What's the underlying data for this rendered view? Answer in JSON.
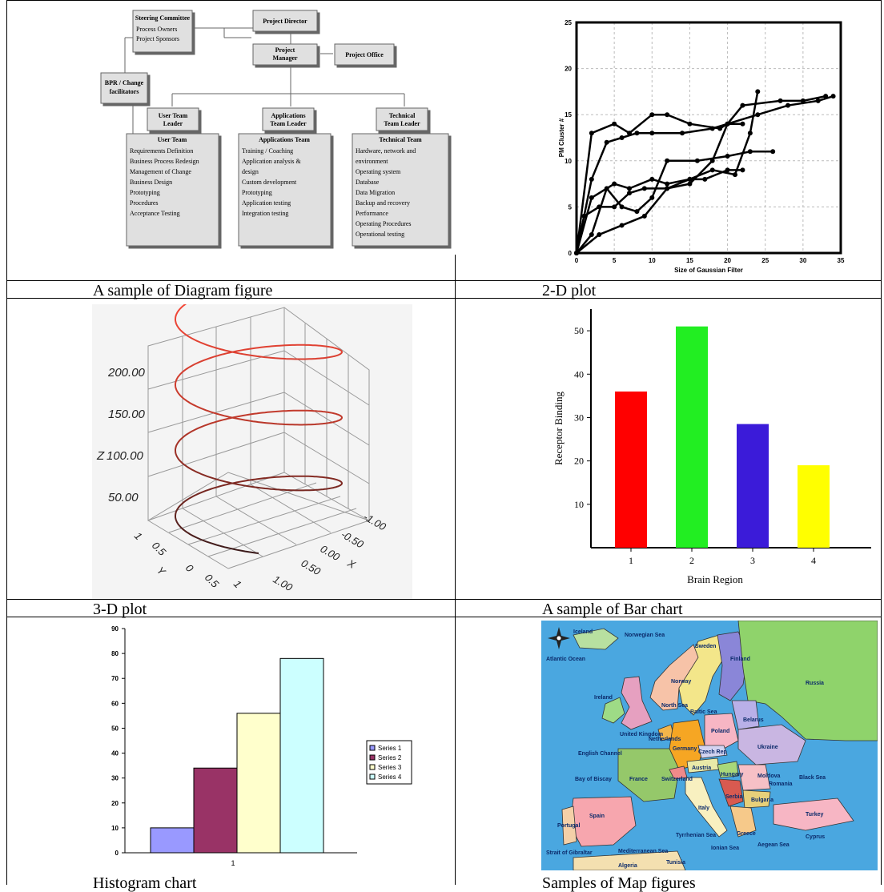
{
  "captions": {
    "diagram": "A sample of Diagram figure",
    "plot2d": "2-D plot",
    "plot3d": "3-D plot",
    "bar": "A sample of Bar chart",
    "histogram": "Histogram chart",
    "map": "Samples of Map figures"
  },
  "org": {
    "steering_title": "Steering Committee",
    "steering_line1": "Process Owners",
    "steering_line2": "Project Sponsors",
    "director": "Project Director",
    "manager_l1": "Project",
    "manager_l2": "Manager",
    "office": "Project Office",
    "bpr_l1": "BPR / Change",
    "bpr_l2": "facilitators",
    "user_leader_l1": "User Team",
    "user_leader_l2": "Leader",
    "app_leader_l1": "Applications",
    "app_leader_l2": "Team Leader",
    "tech_leader_l1": "Technical",
    "tech_leader_l2": "Team Leader",
    "teams": [
      {
        "title": "User Team",
        "items": [
          "Requirements Definition",
          "Business Process Redesign",
          "Management of Change",
          "Business Design",
          "Prototyping",
          "Procedures",
          "Acceptance Testing"
        ]
      },
      {
        "title": "Applications Team",
        "items": [
          "Training / Coaching",
          "Application analysis &",
          "design",
          "Custom development",
          "Prototyping",
          "Application testing",
          "Integration testing"
        ]
      },
      {
        "title": "Technical Team",
        "items": [
          "Hardware, network and",
          "environment",
          "Operating system",
          "Database",
          "Data Migration",
          "Backup and recovery",
          "Performance",
          "Operating Procedures",
          "Operational testing"
        ]
      }
    ]
  },
  "plot3d_labels": {
    "z_ticks": [
      "200.00",
      "150.00",
      "100.00",
      "50.00"
    ],
    "z_axis": "Z",
    "y_ticks": [
      "1",
      "0.5",
      "0",
      "0.5",
      "1"
    ],
    "y_axis": "Y",
    "x_ticks": [
      "-1.00",
      "-0.50",
      "0.00",
      "0.50",
      "1.00"
    ],
    "x_axis": "X"
  },
  "chart_data": [
    {
      "type": "line",
      "title": "",
      "xlabel": "Size of Gaussian Filter",
      "ylabel": "PM Cluster #",
      "xlim": [
        0,
        35
      ],
      "ylim": [
        0,
        25
      ],
      "x_ticks": [
        "0",
        "5",
        "10",
        "15",
        "20",
        "25",
        "30",
        "35"
      ],
      "y_ticks": [
        "0",
        "5",
        "10",
        "15",
        "20",
        "25"
      ],
      "grid": true,
      "series": [
        {
          "x": [
            0,
            2,
            5,
            7,
            10,
            12,
            15,
            19,
            20,
            22,
            27,
            30,
            33
          ],
          "y": [
            0,
            13,
            14,
            13,
            15,
            15,
            14,
            13.5,
            14,
            16,
            16.5,
            16.5,
            17
          ]
        },
        {
          "x": [
            0,
            2,
            4,
            6,
            8,
            10,
            14,
            18,
            20,
            24,
            28,
            32,
            34
          ],
          "y": [
            0,
            8,
            12,
            12.5,
            13,
            13,
            13,
            13.5,
            14,
            15,
            16,
            16.5,
            17
          ]
        },
        {
          "x": [
            0,
            2,
            5,
            7,
            10,
            12,
            15,
            18,
            21,
            23,
            24
          ],
          "y": [
            0,
            6,
            7.5,
            7,
            8,
            7.5,
            8,
            9,
            8.5,
            13,
            17.5
          ]
        },
        {
          "x": [
            0,
            1,
            3,
            5,
            7,
            9,
            12,
            15,
            18,
            20,
            22
          ],
          "y": [
            0,
            4,
            5,
            5,
            6.5,
            7,
            7,
            7.5,
            10,
            14,
            14
          ]
        },
        {
          "x": [
            0,
            2,
            4,
            6,
            8,
            10,
            12,
            16,
            20,
            23,
            26
          ],
          "y": [
            0,
            2,
            7,
            5,
            4.5,
            6,
            10,
            10,
            10.5,
            11,
            11
          ]
        },
        {
          "x": [
            0,
            3,
            6,
            9,
            12,
            15,
            17,
            20,
            22
          ],
          "y": [
            0,
            2,
            3,
            4,
            7,
            8,
            8,
            9,
            9
          ]
        }
      ]
    },
    {
      "type": "bar",
      "title": "",
      "xlabel": "Brain Region",
      "ylabel": "Receptor Binding",
      "categories": [
        "1",
        "2",
        "3",
        "4"
      ],
      "values": [
        36,
        51,
        28.5,
        19
      ],
      "colors": [
        "#ff0000",
        "#22ee22",
        "#3b1bd9",
        "#ffff00"
      ],
      "ylim": [
        0,
        55
      ],
      "y_ticks": [
        "10",
        "20",
        "30",
        "40",
        "50"
      ]
    },
    {
      "type": "bar",
      "title": "",
      "categories": [
        "1"
      ],
      "series": [
        {
          "name": "Series 1",
          "values": [
            10
          ],
          "color": "#9999ff"
        },
        {
          "name": "Series 2",
          "values": [
            34
          ],
          "color": "#993366"
        },
        {
          "name": "Series 3",
          "values": [
            56
          ],
          "color": "#ffffcc"
        },
        {
          "name": "Series 4",
          "values": [
            78
          ],
          "color": "#ccffff"
        }
      ],
      "ylim": [
        0,
        90
      ],
      "y_ticks": [
        "0",
        "10",
        "20",
        "30",
        "40",
        "50",
        "60",
        "70",
        "80",
        "90"
      ],
      "legend": "right"
    }
  ],
  "map": {
    "labels": [
      "Iceland",
      "Norwegian Sea",
      "Atlantic Ocean",
      "Sweden",
      "Finland",
      "Norway",
      "Russia",
      "North Sea",
      "Baltic Sea",
      "Ireland",
      "United Kingdom",
      "Netherlands",
      "Belarus",
      "English Channel",
      "Germany",
      "Poland",
      "Czech Rep",
      "Ukraine",
      "Bay of Biscay",
      "France",
      "Switzerland",
      "Austria",
      "Hungary",
      "Moldova",
      "Romania",
      "Black Sea",
      "Italy",
      "Serbia",
      "Bulgaria",
      "Spain",
      "Portugal",
      "Turkey",
      "Mediterranean Sea",
      "Tyrrhenian Sea",
      "Ionian Sea",
      "Aegean Sea",
      "Greece",
      "Algeria",
      "Tunisia",
      "Strait of Gibraltar",
      "Cyprus"
    ]
  }
}
